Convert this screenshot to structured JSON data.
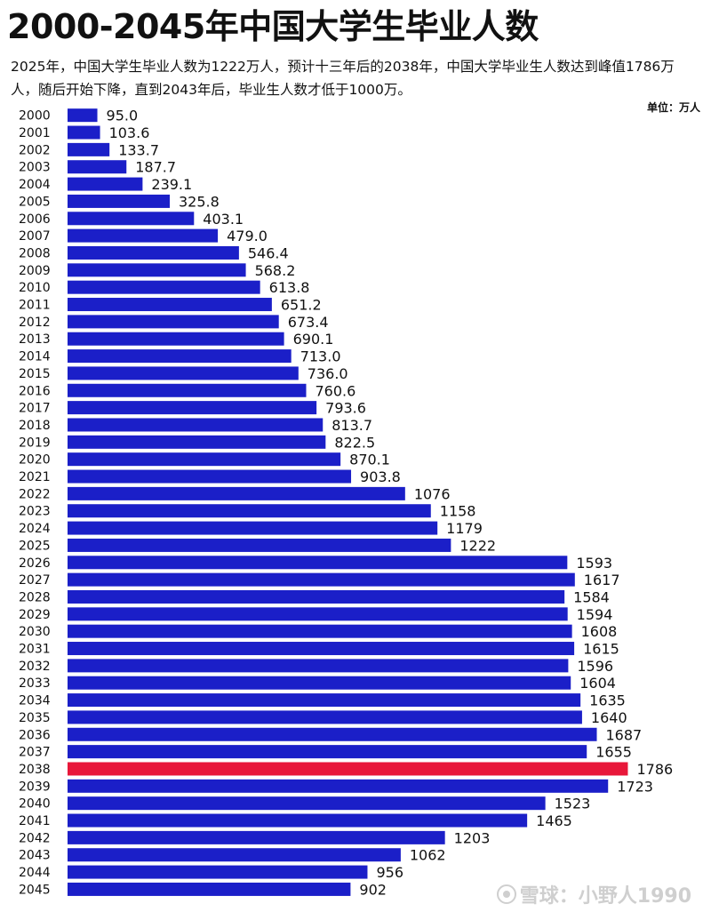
{
  "header": {
    "title": "2000-2045年中国大学生毕业人数",
    "subtitle": "2025年，中国大学生毕业人数为1222万人，预计十三年后的2038年，中国大学毕业生人数达到峰值1786万人，随后开始下降，直到2043年后，毕业生人数才低于1000万。",
    "unit": "单位：万人"
  },
  "watermark": {
    "text": "雪球：小野人1990"
  },
  "colors": {
    "bar": "#1b1fc8",
    "highlight": "#e8173a"
  },
  "chart_data": {
    "type": "bar",
    "orientation": "horizontal",
    "title": "2000-2045年中国大学生毕业人数",
    "ylabel": "",
    "xlabel": "单位：万人",
    "xlim": [
      0,
      1850
    ],
    "grid": false,
    "highlight_category": "2038",
    "categories": [
      "2000",
      "2001",
      "2002",
      "2003",
      "2004",
      "2005",
      "2006",
      "2007",
      "2008",
      "2009",
      "2010",
      "2011",
      "2012",
      "2013",
      "2014",
      "2015",
      "2016",
      "2017",
      "2018",
      "2019",
      "2020",
      "2021",
      "2022",
      "2023",
      "2024",
      "2025",
      "2026",
      "2027",
      "2028",
      "2029",
      "2030",
      "2031",
      "2032",
      "2033",
      "2034",
      "2035",
      "2036",
      "2037",
      "2038",
      "2039",
      "2040",
      "2041",
      "2042",
      "2043",
      "2044",
      "2045"
    ],
    "values": [
      95.0,
      103.6,
      133.7,
      187.7,
      239.1,
      325.8,
      403.1,
      479.0,
      546.4,
      568.2,
      613.8,
      651.2,
      673.4,
      690.1,
      713.0,
      736.0,
      760.6,
      793.6,
      813.7,
      822.5,
      870.1,
      903.8,
      1076,
      1158,
      1179,
      1222,
      1593,
      1617,
      1584,
      1594,
      1608,
      1615,
      1596,
      1604,
      1635,
      1640,
      1687,
      1655,
      1786,
      1723,
      1523,
      1465,
      1203,
      1062,
      956,
      902
    ],
    "value_labels": [
      "95.0",
      "103.6",
      "133.7",
      "187.7",
      "239.1",
      "325.8",
      "403.1",
      "479.0",
      "546.4",
      "568.2",
      "613.8",
      "651.2",
      "673.4",
      "690.1",
      "713.0",
      "736.0",
      "760.6",
      "793.6",
      "813.7",
      "822.5",
      "870.1",
      "903.8",
      "1076",
      "1158",
      "1179",
      "1222",
      "1593",
      "1617",
      "1584",
      "1594",
      "1608",
      "1615",
      "1596",
      "1604",
      "1635",
      "1640",
      "1687",
      "1655",
      "1786",
      "1723",
      "1523",
      "1465",
      "1203",
      "1062",
      "956",
      "902"
    ]
  }
}
